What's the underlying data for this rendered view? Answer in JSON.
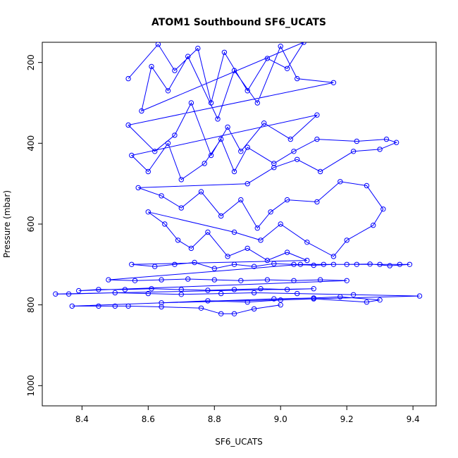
{
  "chart_data": {
    "type": "line",
    "title": "ATOM1 Southbound SF6_UCATS",
    "xlabel": "SF6_UCATS",
    "ylabel": "Pressure (mbar)",
    "xlim": [
      8.28,
      9.47
    ],
    "ylim": [
      1050,
      150
    ],
    "y_reversed": true,
    "x_ticks": [
      8.4,
      8.6,
      8.8,
      9.0,
      9.2,
      9.4
    ],
    "x_tick_labels": [
      "8.4",
      "8.6",
      "8.8",
      "9.0",
      "9.2",
      "9.4"
    ],
    "y_ticks": [
      200,
      400,
      600,
      800,
      1000
    ],
    "y_tick_labels": [
      "200",
      "400",
      "600",
      "800",
      "1000"
    ],
    "grid": false,
    "legend": "none",
    "series_color": "#0000ff",
    "markers": "open-circle",
    "points": [
      [
        8.54,
        240
      ],
      [
        8.63,
        155
      ],
      [
        8.68,
        220
      ],
      [
        8.75,
        165
      ],
      [
        8.79,
        300
      ],
      [
        8.83,
        175
      ],
      [
        8.9,
        270
      ],
      [
        8.96,
        190
      ],
      [
        9.02,
        215
      ],
      [
        9.07,
        150
      ],
      [
        8.58,
        320
      ],
      [
        8.61,
        210
      ],
      [
        8.66,
        270
      ],
      [
        8.72,
        185
      ],
      [
        8.81,
        340
      ],
      [
        8.86,
        220
      ],
      [
        8.93,
        300
      ],
      [
        9.0,
        160
      ],
      [
        9.05,
        240
      ],
      [
        9.16,
        250
      ],
      [
        8.54,
        355
      ],
      [
        8.62,
        420
      ],
      [
        8.68,
        380
      ],
      [
        8.73,
        300
      ],
      [
        8.79,
        430
      ],
      [
        8.84,
        360
      ],
      [
        8.88,
        420
      ],
      [
        8.95,
        350
      ],
      [
        9.03,
        390
      ],
      [
        9.11,
        330
      ],
      [
        8.55,
        430
      ],
      [
        8.6,
        470
      ],
      [
        8.66,
        400
      ],
      [
        8.7,
        490
      ],
      [
        8.77,
        450
      ],
      [
        8.82,
        390
      ],
      [
        8.86,
        470
      ],
      [
        8.9,
        410
      ],
      [
        8.98,
        450
      ],
      [
        9.04,
        420
      ],
      [
        9.11,
        390
      ],
      [
        9.23,
        395
      ],
      [
        9.32,
        390
      ],
      [
        9.35,
        398
      ],
      [
        9.3,
        415
      ],
      [
        9.22,
        420
      ],
      [
        9.12,
        470
      ],
      [
        9.05,
        440
      ],
      [
        8.98,
        460
      ],
      [
        8.9,
        500
      ],
      [
        8.57,
        510
      ],
      [
        8.64,
        530
      ],
      [
        8.7,
        560
      ],
      [
        8.76,
        520
      ],
      [
        8.82,
        580
      ],
      [
        8.88,
        540
      ],
      [
        8.93,
        610
      ],
      [
        8.97,
        570
      ],
      [
        9.02,
        540
      ],
      [
        9.11,
        545
      ],
      [
        9.18,
        495
      ],
      [
        9.26,
        505
      ],
      [
        9.31,
        563
      ],
      [
        9.28,
        603
      ],
      [
        9.2,
        640
      ],
      [
        9.16,
        680
      ],
      [
        9.08,
        645
      ],
      [
        9.0,
        600
      ],
      [
        8.94,
        640
      ],
      [
        8.86,
        620
      ],
      [
        8.6,
        570
      ],
      [
        8.65,
        600
      ],
      [
        8.69,
        640
      ],
      [
        8.73,
        660
      ],
      [
        8.78,
        620
      ],
      [
        8.84,
        680
      ],
      [
        8.9,
        660
      ],
      [
        8.96,
        690
      ],
      [
        9.02,
        670
      ],
      [
        9.08,
        690
      ],
      [
        8.55,
        700
      ],
      [
        8.62,
        705
      ],
      [
        8.68,
        700
      ],
      [
        8.74,
        695
      ],
      [
        8.8,
        710
      ],
      [
        8.86,
        700
      ],
      [
        8.92,
        705
      ],
      [
        8.98,
        698
      ],
      [
        9.04,
        700
      ],
      [
        9.1,
        702
      ],
      [
        9.16,
        700
      ],
      [
        9.23,
        700
      ],
      [
        9.3,
        700
      ],
      [
        9.36,
        700
      ],
      [
        9.39,
        700
      ],
      [
        9.33,
        703
      ],
      [
        9.27,
        699
      ],
      [
        9.2,
        700
      ],
      [
        9.13,
        700
      ],
      [
        9.06,
        700
      ],
      [
        8.48,
        738
      ],
      [
        8.56,
        740
      ],
      [
        8.64,
        738
      ],
      [
        8.72,
        736
      ],
      [
        8.8,
        738
      ],
      [
        8.88,
        740
      ],
      [
        8.96,
        738
      ],
      [
        9.04,
        740
      ],
      [
        9.12,
        738
      ],
      [
        9.2,
        740
      ],
      [
        8.39,
        765
      ],
      [
        8.45,
        762
      ],
      [
        8.53,
        762
      ],
      [
        8.61,
        760
      ],
      [
        8.7,
        762
      ],
      [
        8.78,
        764
      ],
      [
        8.86,
        762
      ],
      [
        8.94,
        760
      ],
      [
        9.02,
        762
      ],
      [
        9.1,
        760
      ],
      [
        8.32,
        773
      ],
      [
        8.36,
        773
      ],
      [
        8.5,
        770
      ],
      [
        8.6,
        772
      ],
      [
        8.7,
        774
      ],
      [
        8.82,
        772
      ],
      [
        8.92,
        770
      ],
      [
        9.05,
        772
      ],
      [
        9.22,
        775
      ],
      [
        9.42,
        778
      ],
      [
        8.64,
        795
      ],
      [
        8.78,
        790
      ],
      [
        8.9,
        793
      ],
      [
        9.0,
        788
      ],
      [
        9.1,
        785
      ],
      [
        9.26,
        793
      ],
      [
        9.3,
        788
      ],
      [
        9.18,
        780
      ],
      [
        9.1,
        783
      ],
      [
        8.98,
        785
      ],
      [
        8.37,
        803
      ],
      [
        8.45,
        803
      ],
      [
        8.5,
        803
      ],
      [
        8.54,
        803
      ],
      [
        8.64,
        805
      ],
      [
        8.76,
        808
      ],
      [
        8.82,
        822
      ],
      [
        8.86,
        822
      ],
      [
        8.92,
        810
      ],
      [
        9.0,
        800
      ]
    ]
  }
}
